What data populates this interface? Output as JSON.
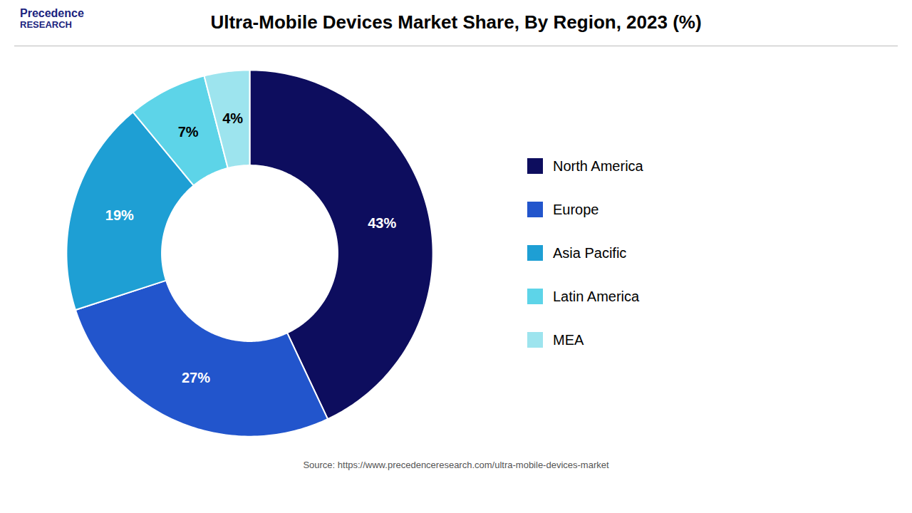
{
  "chart_data": {
    "type": "donut",
    "title": "Ultra-Mobile Devices Market Share, By Region, 2023 (%)",
    "categories": [
      "North America",
      "Europe",
      "Asia Pacific",
      "Latin America",
      "MEA"
    ],
    "values": [
      43,
      27,
      19,
      7,
      4
    ],
    "value_labels": [
      "43%",
      "27%",
      "19%",
      "7%",
      "4%"
    ],
    "colors": [
      "#0d0d5e",
      "#2255cc",
      "#1e9fd4",
      "#5dd4e8",
      "#9de4ee"
    ],
    "data_labels": true,
    "legend": "right",
    "annotations": [
      "Precedence",
      "RESEARCH"
    ],
    "caption": "Source: https://www.precedenceresearch.com/ultra-mobile-devices-market"
  }
}
